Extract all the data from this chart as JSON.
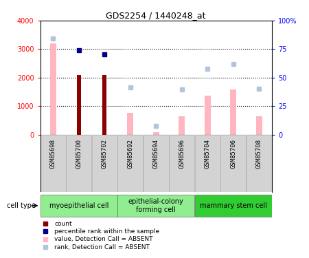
{
  "title": "GDS2254 / 1440248_at",
  "samples": [
    "GSM85698",
    "GSM85700",
    "GSM85702",
    "GSM85692",
    "GSM85694",
    "GSM85696",
    "GSM85704",
    "GSM85706",
    "GSM85708"
  ],
  "count_values": [
    null,
    2090,
    2090,
    null,
    null,
    null,
    null,
    null,
    null
  ],
  "percentile_values": [
    null,
    2960,
    2820,
    null,
    null,
    null,
    null,
    null,
    null
  ],
  "value_absent": [
    3200,
    null,
    null,
    760,
    100,
    640,
    1380,
    1580,
    640
  ],
  "rank_absent": [
    3380,
    null,
    null,
    1660,
    310,
    1580,
    2300,
    2490,
    1620
  ],
  "ylim_left": [
    0,
    4000
  ],
  "ylim_right": [
    0,
    100
  ],
  "yticks_left": [
    0,
    1000,
    2000,
    3000,
    4000
  ],
  "yticks_right": [
    0,
    25,
    50,
    75,
    100
  ],
  "yticklabels_left": [
    "0",
    "1000",
    "2000",
    "3000",
    "4000"
  ],
  "yticklabels_right": [
    "0",
    "25",
    "50",
    "75",
    "100%"
  ],
  "count_color": "#8B0000",
  "percentile_color": "#00008B",
  "value_absent_color": "#FFB6C1",
  "rank_absent_color": "#B0C4DE",
  "bg_color": "#ffffff",
  "label_area_color": "#d3d3d3",
  "cell_type_bg_light": "#90EE90",
  "cell_type_bg_dark": "#32CD32",
  "cell_groups": [
    {
      "start": 0,
      "end": 2,
      "label": "myoepithelial cell",
      "dark": false
    },
    {
      "start": 3,
      "end": 5,
      "label": "epithelial-colony\nforming cell",
      "dark": false
    },
    {
      "start": 6,
      "end": 8,
      "label": "mammary stem cell",
      "dark": true
    }
  ],
  "legend_items": [
    {
      "color": "#8B0000",
      "text": "count"
    },
    {
      "color": "#00008B",
      "text": "percentile rank within the sample"
    },
    {
      "color": "#FFB6C1",
      "text": "value, Detection Call = ABSENT"
    },
    {
      "color": "#B0C4DE",
      "text": "rank, Detection Call = ABSENT"
    }
  ]
}
